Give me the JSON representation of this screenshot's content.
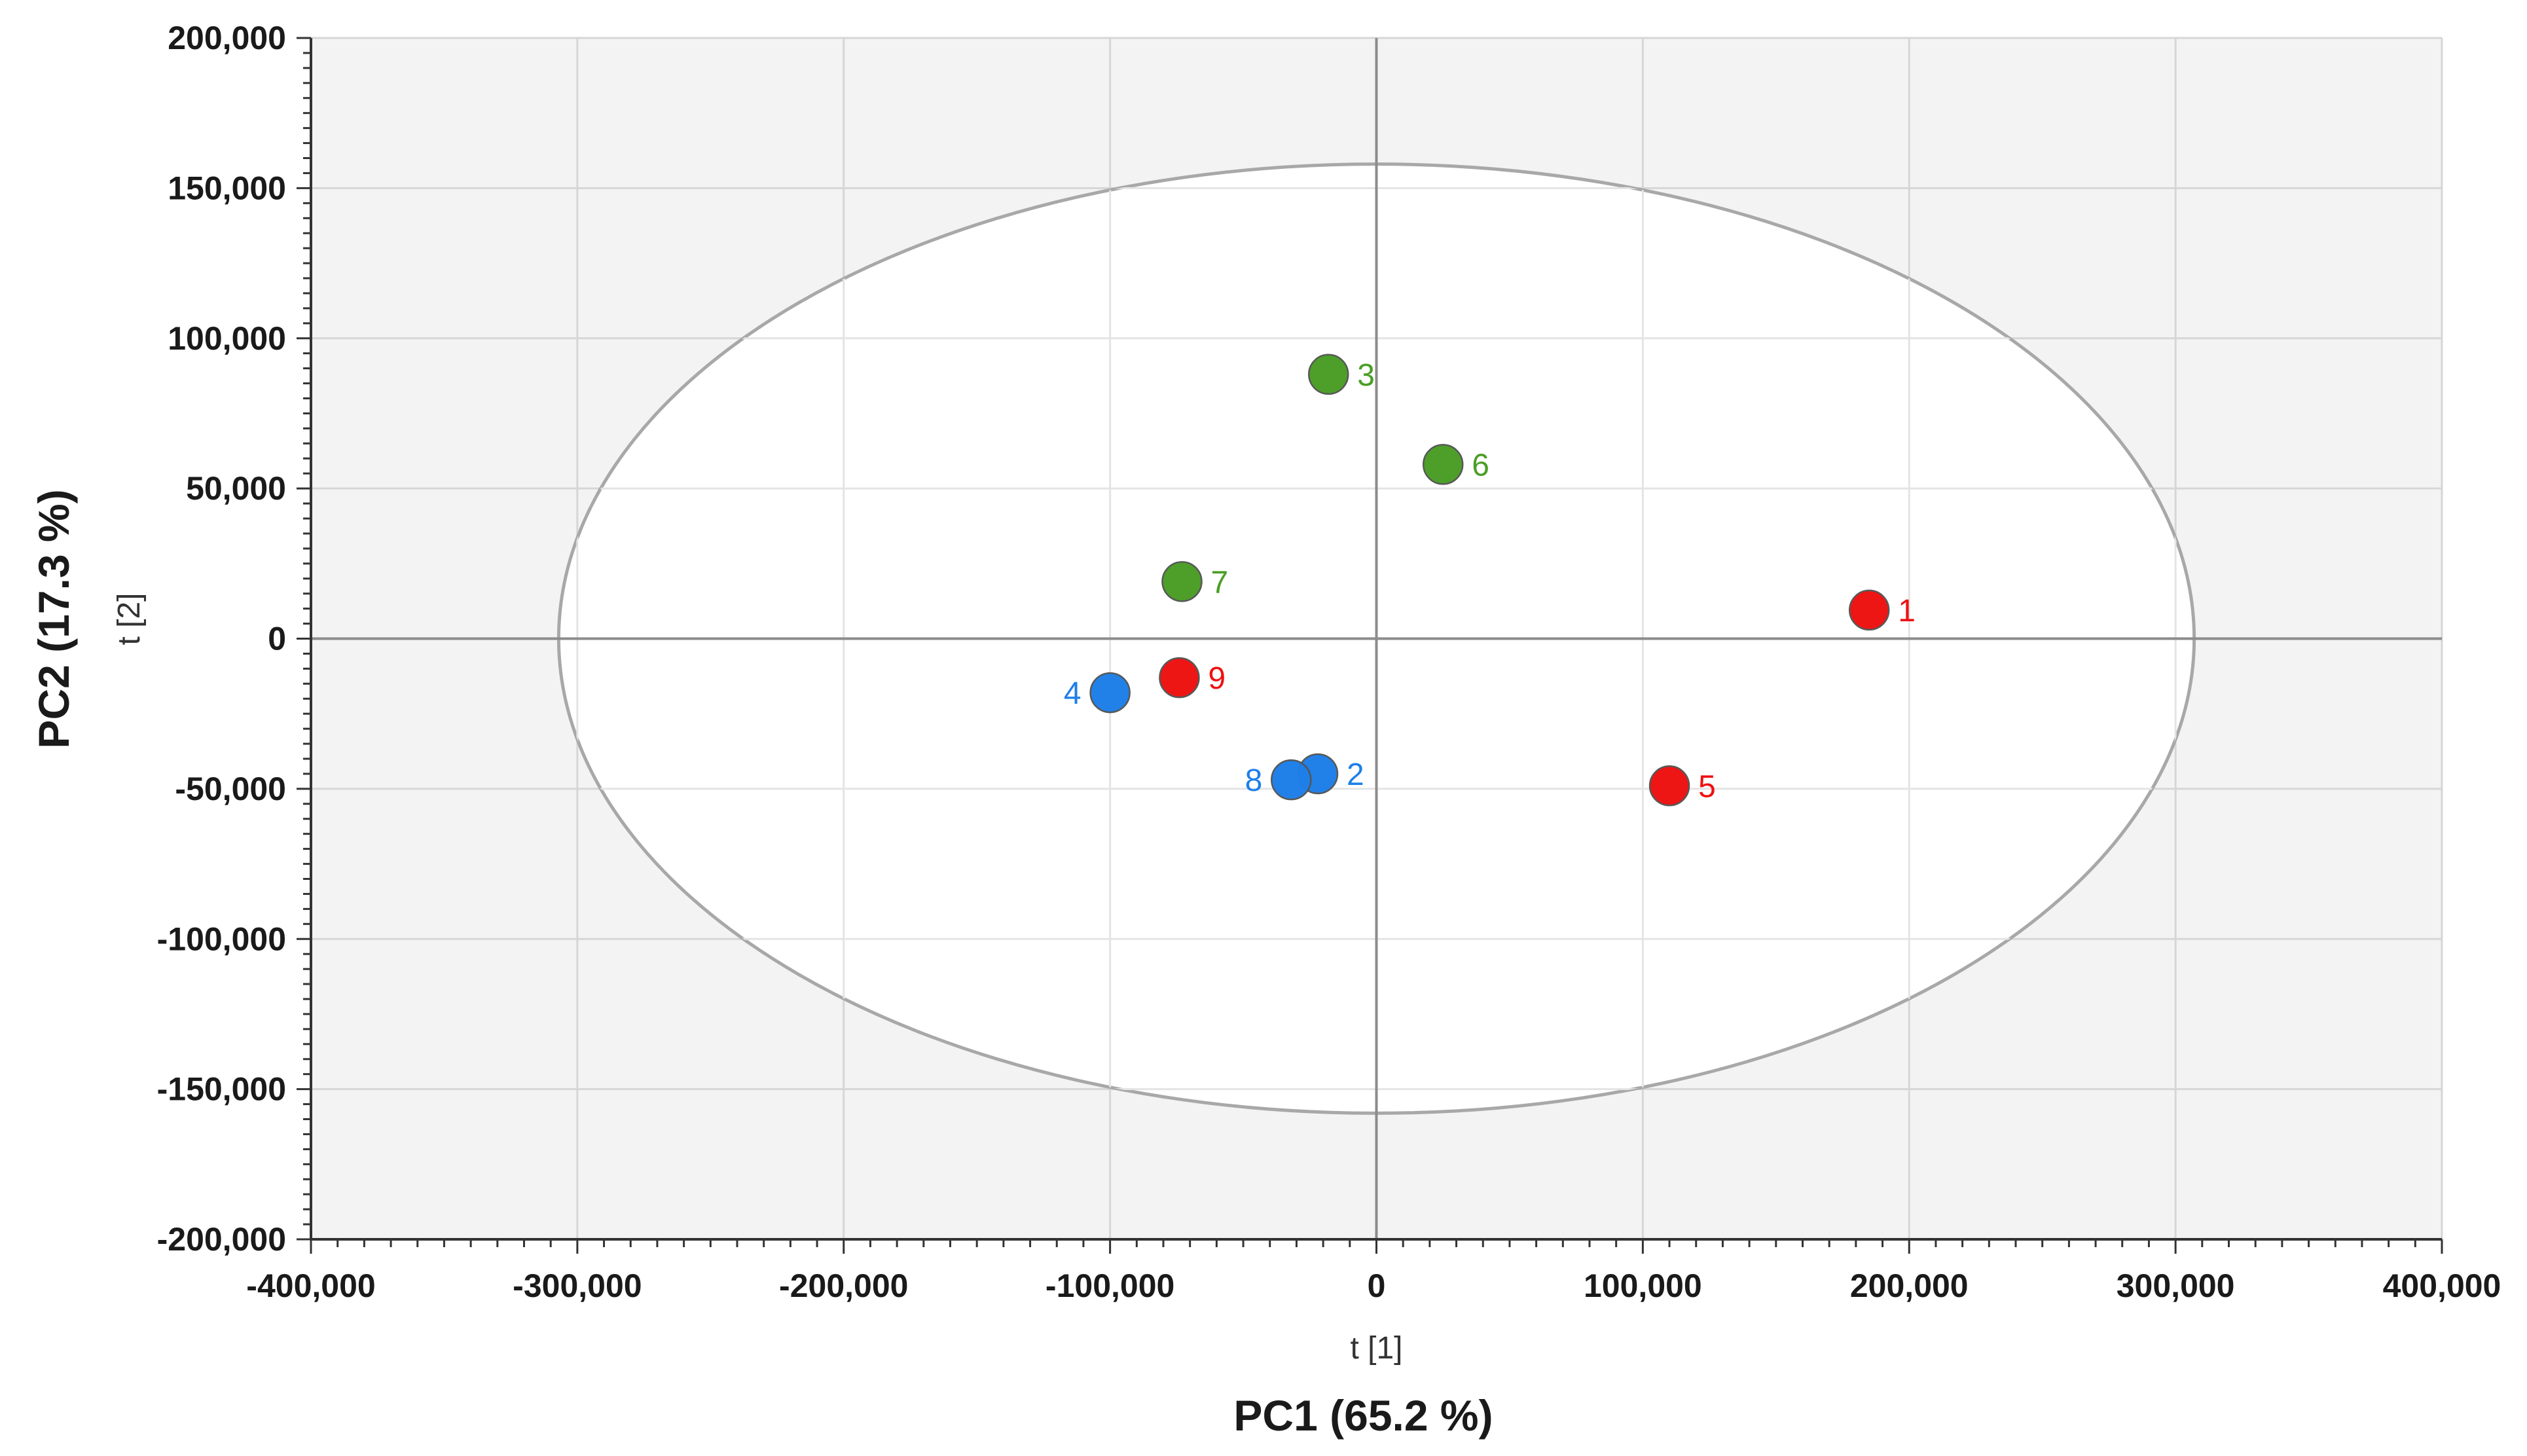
{
  "chart_data": {
    "type": "scatter",
    "title": "",
    "xlabel": "PC1 (65.2 %)",
    "ylabel": "PC2 (17.3 %)",
    "x_sublabel": "t [1]",
    "y_sublabel": "t [2]",
    "xlim": [
      -400000,
      400000
    ],
    "ylim": [
      -200000,
      200000
    ],
    "x_ticks": [
      -400000,
      -300000,
      -200000,
      -100000,
      0,
      100000,
      200000,
      300000,
      400000
    ],
    "x_tick_labels": [
      "-400,000",
      "-300,000",
      "-200,000",
      "-100,000",
      "0",
      "100,000",
      "200,000",
      "300,000",
      "400,000"
    ],
    "y_ticks": [
      200000,
      150000,
      100000,
      50000,
      0,
      -50000,
      -100000,
      -150000,
      -200000
    ],
    "y_tick_labels": [
      "200,000",
      "150,000",
      "100,000",
      "50,000",
      "0",
      "-50,000",
      "-100,000",
      "-150,000",
      "-200,000"
    ],
    "grid": true,
    "ellipse": {
      "name": "Hotelling T2 ellipse",
      "center": [
        0,
        0
      ],
      "rx": 307000,
      "ry": 158000
    },
    "groups": [
      {
        "name": "red",
        "color": "#ee1111"
      },
      {
        "name": "green",
        "color": "#4a9e25"
      },
      {
        "name": "blue",
        "color": "#1e7fe8"
      }
    ],
    "series": [
      {
        "label": "1",
        "x": 185000,
        "y": 9500,
        "group": "red",
        "label_side": "right"
      },
      {
        "label": "2",
        "x": -22000,
        "y": -45000,
        "group": "blue",
        "label_side": "right"
      },
      {
        "label": "3",
        "x": -18000,
        "y": 88000,
        "group": "green",
        "label_side": "right"
      },
      {
        "label": "4",
        "x": -100000,
        "y": -18000,
        "group": "blue",
        "label_side": "left"
      },
      {
        "label": "5",
        "x": 110000,
        "y": -49000,
        "group": "red",
        "label_side": "right"
      },
      {
        "label": "6",
        "x": 25000,
        "y": 58000,
        "group": "green",
        "label_side": "right"
      },
      {
        "label": "7",
        "x": -73000,
        "y": 19000,
        "group": "green",
        "label_side": "right"
      },
      {
        "label": "8",
        "x": -32000,
        "y": -47000,
        "group": "blue",
        "label_side": "left"
      },
      {
        "label": "9",
        "x": -74000,
        "y": -13000,
        "group": "red",
        "label_side": "right"
      }
    ]
  }
}
